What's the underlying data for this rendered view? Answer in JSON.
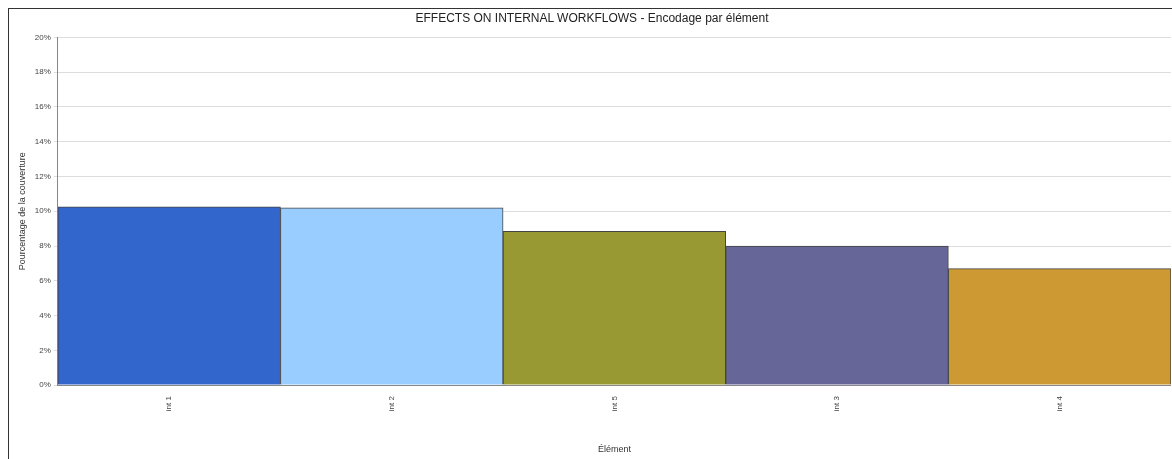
{
  "chart_data": {
    "type": "bar",
    "title": "EFFECTS ON INTERNAL WORKFLOWS - Encodage par élément",
    "xlabel": "Élément",
    "ylabel": "Pourcentage de la couverture",
    "categories": [
      "int 1",
      "int 2",
      "int 5",
      "int 3",
      "int 4"
    ],
    "values": [
      10.25,
      10.2,
      8.85,
      8.0,
      6.7
    ],
    "colors": [
      "#3366cc",
      "#99ccff",
      "#999933",
      "#666699",
      "#cc9933"
    ],
    "ylim": [
      0,
      20
    ],
    "yticks": [
      {
        "value": 0,
        "label": "0%"
      },
      {
        "value": 2,
        "label": "2%"
      },
      {
        "value": 4,
        "label": "4%"
      },
      {
        "value": 6,
        "label": "6%"
      },
      {
        "value": 8,
        "label": "8%"
      },
      {
        "value": 10,
        "label": "10%"
      },
      {
        "value": 12,
        "label": "12%"
      },
      {
        "value": 14,
        "label": "14%"
      },
      {
        "value": 16,
        "label": "16%"
      },
      {
        "value": 18,
        "label": "18%"
      },
      {
        "value": 20,
        "label": "20%"
      }
    ],
    "grid": "y",
    "legend": false
  }
}
